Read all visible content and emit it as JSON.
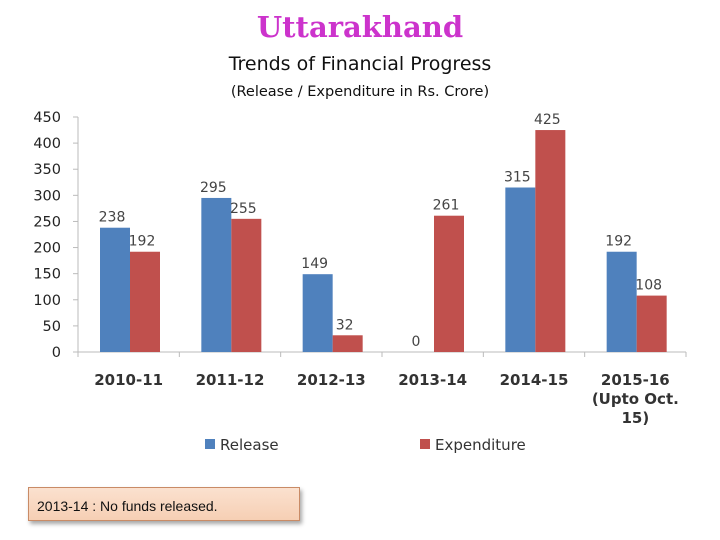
{
  "header": {
    "title": "Uttarakhand",
    "subtitle": "Trends of Financial Progress",
    "units": "(Release / Expenditure in Rs. Crore)"
  },
  "note": {
    "text": "2013-14 :  No funds released."
  },
  "colors": {
    "title": "#cc33cc",
    "release": "#4f81bd",
    "expenditure": "#c0504d",
    "note_bg": "#f8d9c4"
  },
  "chart_data": {
    "type": "bar",
    "categories": [
      "2010-11",
      "2011-12",
      "2012-13",
      "2013-14",
      "2014-15",
      "2015-16 (Upto Oct. 15)"
    ],
    "series": [
      {
        "name": "Release",
        "values": [
          238,
          295,
          149,
          0,
          315,
          192
        ],
        "color": "#4f81bd"
      },
      {
        "name": "Expenditure",
        "values": [
          192,
          255,
          32,
          261,
          425,
          108
        ],
        "color": "#c0504d"
      }
    ],
    "yticks": [
      0,
      50,
      100,
      150,
      200,
      250,
      300,
      350,
      400,
      450
    ],
    "ylim": [
      0,
      450
    ],
    "grid": false,
    "legend": "bottom"
  }
}
